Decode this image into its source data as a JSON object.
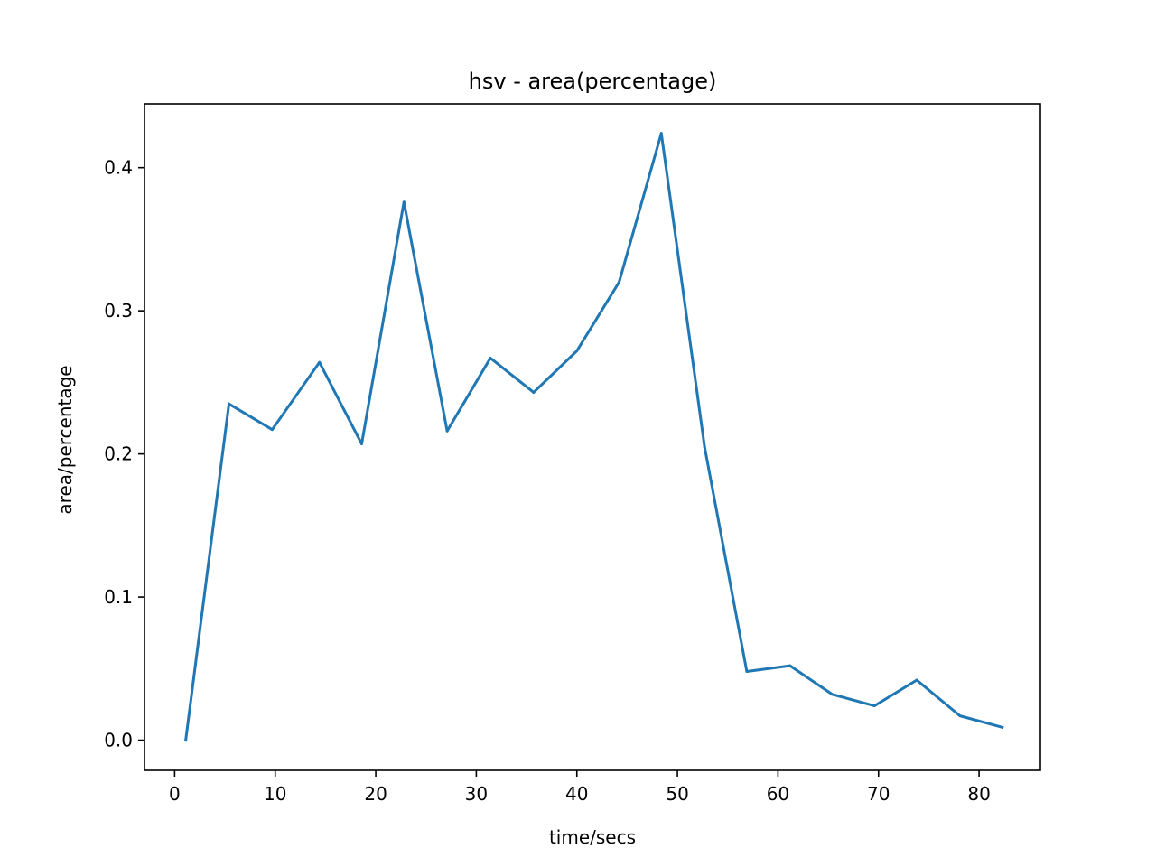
{
  "chart_data": {
    "type": "line",
    "title": "hsv - area(percentage)",
    "xlabel": "time/secs",
    "ylabel": "area/percentage",
    "xlim": [
      -3,
      86.1
    ],
    "ylim": [
      -0.0211,
      0.4446
    ],
    "xticks": [
      0,
      10,
      20,
      30,
      40,
      50,
      60,
      70,
      80
    ],
    "xtick_labels": [
      "0",
      "10",
      "20",
      "30",
      "40",
      "50",
      "60",
      "70",
      "80"
    ],
    "yticks": [
      0.0,
      0.1,
      0.2,
      0.3,
      0.4
    ],
    "ytick_labels": [
      "0.0",
      "0.1",
      "0.2",
      "0.3",
      "0.4"
    ],
    "grid": false,
    "legend": "none",
    "colors": {
      "line": "#1f77b4",
      "axes": "#000000",
      "background": "#ffffff"
    },
    "series": [
      {
        "x": [
          1.1,
          5.4,
          9.7,
          14.4,
          18.6,
          22.8,
          27.1,
          31.4,
          35.7,
          40.0,
          44.2,
          48.4,
          52.7,
          56.9,
          61.2,
          65.4,
          69.6,
          73.8,
          78.1,
          82.3
        ],
        "values": [
          0.0,
          0.235,
          0.217,
          0.264,
          0.207,
          0.376,
          0.216,
          0.267,
          0.243,
          0.272,
          0.32,
          0.424,
          0.205,
          0.048,
          0.052,
          0.032,
          0.024,
          0.042,
          0.017,
          0.009
        ]
      }
    ]
  }
}
